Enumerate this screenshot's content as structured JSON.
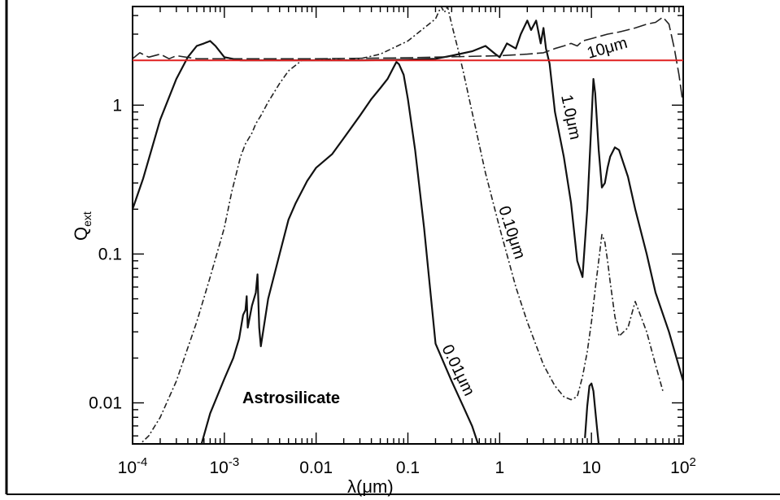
{
  "chart_data": {
    "type": "line",
    "title": "",
    "xlabel": "λ(μm)",
    "ylabel": "Q_ext",
    "ylabel_main": "Q",
    "ylabel_sub": "ext",
    "xscale": "log",
    "yscale": "log",
    "xlim": [
      0.0001,
      100
    ],
    "ylim": [
      0.0053,
      4.6
    ],
    "x_ticks": [
      {
        "value": 0.0001,
        "label_base": "10",
        "label_exp": "-4"
      },
      {
        "value": 0.001,
        "label_base": "10",
        "label_exp": "-3"
      },
      {
        "value": 0.01,
        "label": "0.01"
      },
      {
        "value": 0.1,
        "label": "0.1"
      },
      {
        "value": 1,
        "label": "1"
      },
      {
        "value": 10,
        "label": "10"
      },
      {
        "value": 100,
        "label_base": "10",
        "label_exp": "2"
      }
    ],
    "y_ticks": [
      {
        "value": 0.01,
        "label": "0.01"
      },
      {
        "value": 0.1,
        "label": "0.1"
      },
      {
        "value": 1,
        "label": "1"
      }
    ],
    "annotation_text": "Astrosilicate",
    "reference_line": {
      "y": 2.0,
      "color": "#e02020"
    },
    "series": [
      {
        "label": "0.01μm",
        "style": "solid",
        "color": "#111111",
        "x": [
          0.00055,
          0.0007,
          0.001,
          0.00125,
          0.00145,
          0.0016,
          0.0017,
          0.00175,
          0.0018,
          0.002,
          0.0022,
          0.0023,
          0.0024,
          0.0025,
          0.003,
          0.004,
          0.005,
          0.006,
          0.008,
          0.01,
          0.015,
          0.02,
          0.03,
          0.04,
          0.05,
          0.06,
          0.07,
          0.075,
          0.08,
          0.09,
          0.1,
          0.12,
          0.15,
          0.2,
          0.3,
          0.4,
          0.5,
          0.6
        ],
        "y": [
          0.005,
          0.0085,
          0.0145,
          0.02,
          0.027,
          0.039,
          0.042,
          0.052,
          0.032,
          0.045,
          0.055,
          0.073,
          0.032,
          0.024,
          0.05,
          0.1,
          0.17,
          0.22,
          0.31,
          0.38,
          0.47,
          0.6,
          0.85,
          1.1,
          1.3,
          1.5,
          1.8,
          1.95,
          1.88,
          1.6,
          1.1,
          0.5,
          0.15,
          0.025,
          0.014,
          0.0095,
          0.007,
          0.005
        ]
      },
      {
        "label": "0.10μm",
        "style": "dashdot",
        "color": "#222222",
        "x": [
          0.00011,
          0.00015,
          0.0002,
          0.0003,
          0.0005,
          0.0007,
          0.001,
          0.0012,
          0.0015,
          0.0017,
          0.002,
          0.0022,
          0.0025,
          0.003,
          0.004,
          0.005,
          0.007,
          0.01,
          0.015,
          0.02,
          0.03,
          0.05,
          0.1,
          0.15,
          0.2,
          0.23,
          0.25,
          0.27,
          0.3,
          0.35,
          0.4,
          0.5,
          0.7,
          1.0,
          1.5,
          2,
          3,
          4,
          5,
          6,
          7,
          8,
          9,
          10,
          11,
          12,
          13,
          14,
          15,
          16,
          18,
          20,
          25,
          30,
          40,
          50,
          60
        ],
        "y": [
          0.005,
          0.006,
          0.008,
          0.014,
          0.035,
          0.07,
          0.15,
          0.26,
          0.45,
          0.55,
          0.65,
          0.75,
          0.85,
          1.05,
          1.4,
          1.7,
          2.0,
          2.0,
          2.05,
          2.0,
          2.05,
          2.2,
          2.7,
          3.3,
          3.8,
          4.6,
          4.2,
          4.6,
          3.5,
          2.4,
          1.7,
          0.9,
          0.35,
          0.15,
          0.06,
          0.035,
          0.018,
          0.013,
          0.011,
          0.0105,
          0.011,
          0.015,
          0.022,
          0.035,
          0.058,
          0.09,
          0.135,
          0.12,
          0.09,
          0.065,
          0.038,
          0.028,
          0.032,
          0.048,
          0.03,
          0.018,
          0.012
        ]
      },
      {
        "label": "1.0μm",
        "style": "solid",
        "color": "#111111",
        "x": [
          0.0001,
          0.00013,
          0.0002,
          0.0003,
          0.0004,
          0.0005,
          0.0006,
          0.0007,
          0.0008,
          0.001,
          0.0015,
          0.002,
          0.003,
          0.01,
          0.03,
          0.1,
          0.2,
          0.3,
          0.5,
          0.7,
          0.9,
          1.0,
          1.2,
          1.5,
          1.7,
          2.0,
          2.2,
          2.5,
          2.8,
          3.0,
          3.2,
          3.5,
          4,
          5,
          6,
          7,
          8,
          9,
          9.8,
          10.5,
          11,
          12,
          13,
          14,
          15,
          16,
          18,
          20,
          25,
          30,
          40,
          50,
          70,
          100
        ],
        "y": [
          0.2,
          0.32,
          0.8,
          1.5,
          2.1,
          2.5,
          2.6,
          2.7,
          2.5,
          2.1,
          2.0,
          2.0,
          2.0,
          2.0,
          2.0,
          2.02,
          2.05,
          2.15,
          2.3,
          2.5,
          2.2,
          2.1,
          2.6,
          2.4,
          3.0,
          3.7,
          3.2,
          3.7,
          2.6,
          3.3,
          2.4,
          1.9,
          0.9,
          0.45,
          0.22,
          0.09,
          0.07,
          0.2,
          0.6,
          1.5,
          1.2,
          0.5,
          0.28,
          0.3,
          0.38,
          0.45,
          0.52,
          0.5,
          0.33,
          0.2,
          0.1,
          0.055,
          0.03,
          0.014
        ]
      },
      {
        "label": "10μm",
        "style": "longdash",
        "color": "#222222",
        "x": [
          0.0001,
          0.00012,
          0.00015,
          0.0002,
          0.00025,
          0.0003,
          0.0005,
          0.001,
          0.01,
          0.1,
          1,
          2,
          3,
          4,
          5,
          6,
          7,
          8,
          10,
          15,
          20,
          30,
          40,
          50,
          60,
          70,
          80,
          90,
          100
        ],
        "y": [
          2.05,
          2.25,
          2.1,
          2.2,
          2.05,
          2.15,
          2.05,
          2.05,
          2.05,
          2.08,
          2.15,
          2.2,
          2.25,
          2.4,
          2.5,
          2.6,
          2.5,
          2.7,
          2.8,
          3.0,
          3.1,
          3.3,
          3.5,
          3.6,
          3.9,
          3.5,
          2.4,
          1.6,
          1.0
        ]
      },
      {
        "label": "",
        "style": "solid",
        "color": "#111111",
        "x": [
          8.5,
          9,
          9.5,
          10,
          10.5,
          11,
          11.5,
          12
        ],
        "y": [
          0.0058,
          0.0095,
          0.013,
          0.0135,
          0.012,
          0.009,
          0.0068,
          0.0053
        ]
      }
    ]
  }
}
